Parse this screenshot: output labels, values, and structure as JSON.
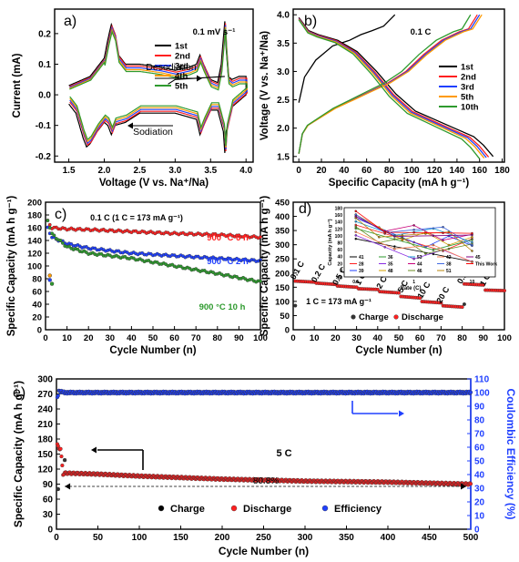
{
  "chart_data": [
    {
      "panel": "a)",
      "type": "line",
      "annotation": "0.1 mV s⁻¹",
      "xlabel": "Voltage (V vs. Na⁺/Na)",
      "ylabel": "Current (mA)",
      "xlim": [
        1.3,
        4.1
      ],
      "ylim": [
        -0.22,
        0.28
      ],
      "xticks": [
        "1.5",
        "2.0",
        "2.5",
        "3.0",
        "3.5",
        "4.0"
      ],
      "yticks": [
        "-0.2",
        "-0.1",
        "0.0",
        "0.1",
        "0.2"
      ],
      "arrow_labels": [
        "Desodiation",
        "Sodiation"
      ],
      "legend": [
        "1st",
        "2nd",
        "3rd",
        "4th",
        "5th"
      ],
      "colors": [
        "#000000",
        "#ff2020",
        "#2040ff",
        "#ff9a00",
        "#2e9a2e"
      ],
      "upper": {
        "x": [
          1.5,
          1.6,
          1.8,
          2.0,
          2.05,
          2.1,
          2.15,
          2.2,
          2.3,
          2.5,
          2.8,
          3.0,
          3.2,
          3.3,
          3.35,
          3.4,
          3.5,
          3.6,
          3.65,
          3.7,
          3.72,
          3.75,
          3.8,
          3.9,
          4.0
        ],
        "y": [
          0.03,
          0.04,
          0.06,
          0.12,
          0.18,
          0.23,
          0.2,
          0.13,
          0.1,
          0.1,
          0.09,
          0.08,
          0.09,
          0.1,
          0.13,
          0.1,
          0.05,
          0.04,
          0.1,
          0.24,
          0.15,
          0.06,
          0.05,
          0.06,
          0.06
        ]
      },
      "lower": {
        "x": [
          4.0,
          3.9,
          3.8,
          3.72,
          3.7,
          3.68,
          3.6,
          3.5,
          3.4,
          3.35,
          3.3,
          3.0,
          2.5,
          2.3,
          2.15,
          2.1,
          2.05,
          2.0,
          1.9,
          1.8,
          1.75,
          1.7,
          1.6,
          1.5
        ],
        "y": [
          0.0,
          -0.02,
          -0.04,
          -0.12,
          -0.19,
          -0.12,
          -0.05,
          -0.05,
          -0.1,
          -0.13,
          -0.08,
          -0.06,
          -0.06,
          -0.09,
          -0.1,
          -0.13,
          -0.1,
          -0.09,
          -0.12,
          -0.16,
          -0.17,
          -0.14,
          -0.06,
          -0.03
        ]
      }
    },
    {
      "panel": "b)",
      "type": "line",
      "annotation": "0.1 C",
      "xlabel": "Specific Capacity (mA h g⁻¹)",
      "ylabel": "Voltage (V vs. Na⁺/Na)",
      "xlim": [
        -5,
        182
      ],
      "ylim": [
        1.4,
        4.1
      ],
      "xticks": [
        "0",
        "20",
        "40",
        "60",
        "80",
        "100",
        "120",
        "140",
        "160",
        "180"
      ],
      "yticks": [
        "1.5",
        "2.0",
        "2.5",
        "3.0",
        "3.5",
        "4.0"
      ],
      "legend": [
        "1st",
        "2nd",
        "3rd",
        "5th",
        "10th"
      ],
      "colors": [
        "#000000",
        "#ff2020",
        "#2040ff",
        "#ff9a00",
        "#2e9a2e"
      ],
      "charge_shape": {
        "f": [
          0,
          0.02,
          0.05,
          0.1,
          0.2,
          0.3,
          0.4,
          0.5,
          0.6,
          0.7,
          0.8,
          0.9,
          0.95,
          1.0
        ],
        "v": [
          1.55,
          1.9,
          2.05,
          2.15,
          2.35,
          2.5,
          2.65,
          2.8,
          3.0,
          3.3,
          3.55,
          3.7,
          3.75,
          4.0
        ]
      },
      "discharge_shape": {
        "f": [
          0,
          0.05,
          0.1,
          0.2,
          0.3,
          0.4,
          0.5,
          0.6,
          0.7,
          0.8,
          0.9,
          0.95,
          1.0
        ],
        "v": [
          3.95,
          3.72,
          3.65,
          3.55,
          3.35,
          3.0,
          2.6,
          2.3,
          2.15,
          2.0,
          1.85,
          1.7,
          1.5
        ]
      },
      "first_charge": {
        "x": [
          0,
          5,
          15,
          30,
          45,
          55,
          65,
          75,
          80,
          85
        ],
        "y": [
          2.45,
          2.9,
          3.2,
          3.45,
          3.55,
          3.65,
          3.72,
          3.8,
          3.9,
          4.0
        ]
      },
      "capacities": {
        "charge": [
          85,
          158,
          160,
          162,
          152
        ],
        "discharge": [
          172,
          168,
          166,
          164,
          160
        ]
      }
    },
    {
      "panel": "c)",
      "type": "scatter",
      "annotation": "0.1 C  (1 C = 173 mA g⁻¹)",
      "xlabel": "Cycle Number (n)",
      "ylabel": "Specific Capacity (mA h g⁻¹)",
      "xlim": [
        0,
        100
      ],
      "ylim": [
        0,
        200
      ],
      "xticks": [
        "0",
        "10",
        "20",
        "30",
        "40",
        "50",
        "60",
        "70",
        "80",
        "90",
        "100"
      ],
      "yticks": [
        "0",
        "20",
        "40",
        "60",
        "80",
        "100",
        "120",
        "140",
        "160",
        "180",
        "200"
      ],
      "series": [
        {
          "name": "900 °C 6 h",
          "color": "#ff2020",
          "x": [
            1,
            3,
            10,
            20,
            40,
            60,
            80,
            100
          ],
          "y": [
            170,
            160,
            158,
            157,
            154,
            151,
            149,
            145
          ]
        },
        {
          "name": "900 °C 2 h",
          "color": "#2040ff",
          "x": [
            1,
            3,
            10,
            20,
            40,
            60,
            80,
            100
          ],
          "y": [
            160,
            145,
            135,
            128,
            120,
            116,
            112,
            108
          ]
        },
        {
          "name": "900 °C 10 h",
          "color": "#2e9a2e",
          "x": [
            1,
            3,
            10,
            20,
            40,
            60,
            80,
            100
          ],
          "y": [
            172,
            150,
            130,
            120,
            112,
            100,
            88,
            75
          ]
        }
      ]
    },
    {
      "panel": "d)",
      "type": "scatter",
      "annotation": "1 C = 173 mA g⁻¹",
      "xlabel": "Cycle Number (n)",
      "ylabel": "Specific Capacity (mA h g⁻¹)",
      "xlim": [
        0,
        100
      ],
      "ylim": [
        0,
        450
      ],
      "xticks": [
        "0",
        "10",
        "20",
        "30",
        "40",
        "50",
        "60",
        "70",
        "80",
        "90",
        "100"
      ],
      "yticks": [
        "0",
        "50",
        "100",
        "150",
        "200",
        "250",
        "300",
        "350",
        "400",
        "450"
      ],
      "legend": [
        "Charge",
        "Discharge"
      ],
      "rate_labels": [
        "0.1 C",
        "0.2 C",
        "0.5 C",
        "1 C",
        "2 C",
        "5 C",
        "10 C",
        "20 C",
        "0.1 C",
        "1 C"
      ],
      "segments": [
        {
          "x": [
            0,
            10
          ],
          "y": [
            172,
            168
          ]
        },
        {
          "x": [
            10,
            20
          ],
          "y": [
            165,
            160
          ]
        },
        {
          "x": [
            20,
            30
          ],
          "y": [
            155,
            150
          ]
        },
        {
          "x": [
            30,
            40
          ],
          "y": [
            145,
            142
          ]
        },
        {
          "x": [
            40,
            50
          ],
          "y": [
            135,
            130
          ]
        },
        {
          "x": [
            50,
            60
          ],
          "y": [
            118,
            112
          ]
        },
        {
          "x": [
            60,
            70
          ],
          "y": [
            100,
            95
          ]
        },
        {
          "x": [
            70,
            80
          ],
          "y": [
            85,
            80
          ]
        },
        {
          "x": [
            80,
            90
          ],
          "y": [
            162,
            158
          ]
        },
        {
          "x": [
            90,
            100
          ],
          "y": [
            140,
            138
          ]
        }
      ],
      "inset": {
        "xlabel": "Rate (C)",
        "ylabel": "Capacity (mA h g⁻¹)",
        "yticks": [
          "-20",
          "0",
          "20",
          "40",
          "60",
          "80",
          "100",
          "120",
          "140",
          "160",
          "180"
        ],
        "xticks": [
          "0.1",
          "1",
          "10"
        ],
        "legend": [
          "41",
          "28",
          "39",
          "36",
          "35",
          "48",
          "53",
          "44",
          "46",
          "42",
          "38",
          "51",
          "45",
          "This Work"
        ]
      }
    },
    {
      "panel": "e)",
      "type": "scatter",
      "annotation": "5 C",
      "retention": "80.8%",
      "xlabel": "Cycle Number (n)",
      "ylabel": "Specific Capacity (mA h g⁻¹)",
      "y2label": "Coulombic Efficiency (%)",
      "xlim": [
        0,
        500
      ],
      "ylim": [
        0,
        300
      ],
      "y2lim": [
        0,
        110
      ],
      "xticks": [
        "0",
        "50",
        "100",
        "150",
        "200",
        "250",
        "300",
        "350",
        "400",
        "450",
        "500"
      ],
      "yticks": [
        "0",
        "30",
        "60",
        "90",
        "120",
        "150",
        "180",
        "210",
        "240",
        "270",
        "300"
      ],
      "y2ticks": [
        "0",
        "10",
        "20",
        "30",
        "40",
        "50",
        "60",
        "70",
        "80",
        "90",
        "100",
        "110"
      ],
      "legend": [
        "Charge",
        "Discharge",
        "Efficiency"
      ],
      "colors": [
        "#000000",
        "#ff2020",
        "#2040ff"
      ],
      "series": [
        {
          "name": "Discharge",
          "x": [
            1,
            3,
            5,
            8,
            10,
            50,
            100,
            200,
            300,
            400,
            500
          ],
          "y": [
            168,
            162,
            160,
            110,
            112,
            110,
            106,
            100,
            96,
            94,
            90
          ]
        },
        {
          "name": "Efficiency",
          "x": [
            1,
            3,
            10,
            50,
            100,
            200,
            300,
            400,
            500
          ],
          "y": [
            96,
            101,
            100,
            100,
            100,
            100,
            100,
            100,
            100
          ]
        }
      ],
      "outliers": [
        {
          "x": 2,
          "y": 80
        },
        {
          "x": 10,
          "y": 138
        }
      ]
    }
  ]
}
